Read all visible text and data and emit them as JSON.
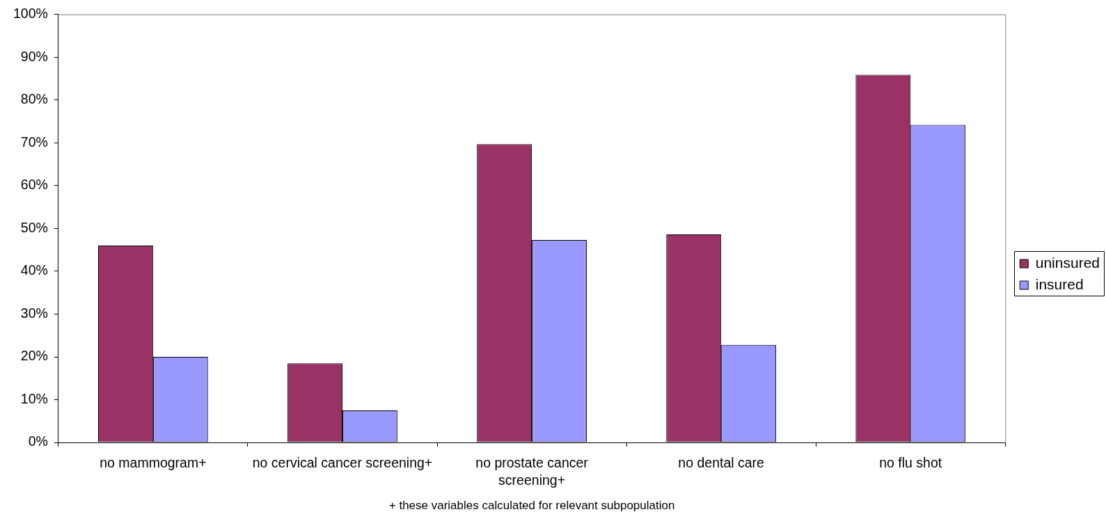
{
  "chart_data": {
    "type": "bar",
    "categories": [
      "no mammogram+",
      "no cervical cancer screening+",
      "no prostate cancer screening+",
      "no dental care",
      "no flu shot"
    ],
    "series": [
      {
        "name": "uninsured",
        "color": "#993366",
        "values": [
          46,
          18.5,
          69.7,
          48.6,
          85.9
        ]
      },
      {
        "name": "insured",
        "color": "#9999ff",
        "values": [
          20,
          7.5,
          47.3,
          22.8,
          74.2
        ]
      }
    ],
    "ylim": [
      0,
      100
    ],
    "yticks": [
      {
        "value": 0,
        "label": "0%"
      },
      {
        "value": 10,
        "label": "10%"
      },
      {
        "value": 20,
        "label": "20%"
      },
      {
        "value": 30,
        "label": "30%"
      },
      {
        "value": 40,
        "label": "40%"
      },
      {
        "value": 50,
        "label": "50%"
      },
      {
        "value": 60,
        "label": "60%"
      },
      {
        "value": 70,
        "label": "70%"
      },
      {
        "value": 80,
        "label": "80%"
      },
      {
        "value": 90,
        "label": "90%"
      },
      {
        "value": 100,
        "label": "100%"
      }
    ],
    "grid": false,
    "legend": "right",
    "annotations": [
      "+ these variables calculated for relevant subpopulation"
    ]
  }
}
